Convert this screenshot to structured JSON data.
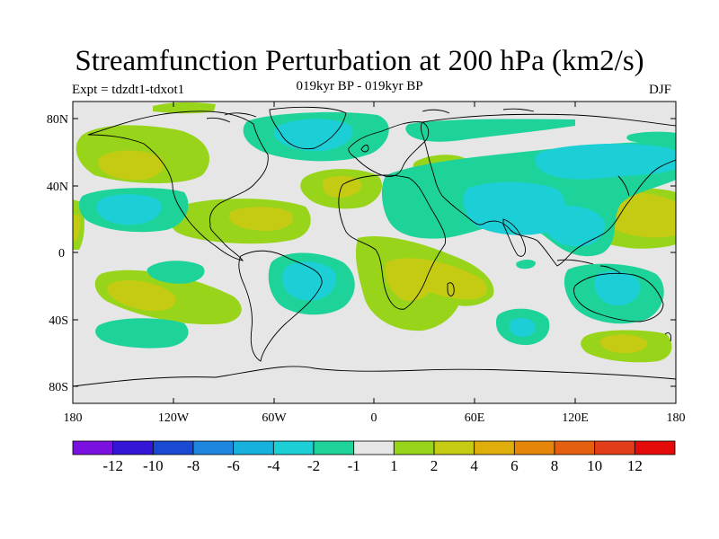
{
  "title": "Streamfunction Perturbation at 200 hPa (km2/s)",
  "subtitle": "019kyr BP - 019kyr BP",
  "left_label": "Expt = tdzdt1-tdxot1",
  "right_label": "DJF",
  "lat_labels": [
    "80N",
    "40N",
    "0",
    "40S",
    "80S"
  ],
  "lon_labels": [
    "180",
    "120W",
    "60W",
    "0",
    "60E",
    "120E",
    "180"
  ],
  "colorbar": {
    "labels": [
      "-12",
      "-10",
      "-8",
      "-6",
      "-4",
      "-2",
      "-1",
      "1",
      "2",
      "4",
      "6",
      "8",
      "10",
      "12"
    ],
    "colors": [
      "#7a11e0",
      "#3416d6",
      "#1a49d4",
      "#1f86e0",
      "#16b2dd",
      "#1ccfd6",
      "#1ed39a",
      "#e6e6e6",
      "#98d41a",
      "#c5cb12",
      "#dfae0a",
      "#e58608",
      "#e46010",
      "#e23d18",
      "#e60b0b"
    ]
  },
  "map": {
    "background_color": "#e6e6e6",
    "pos1_color": "#98d41a",
    "pos2_color": "#c5cb12",
    "neg1_color": "#1ed39a",
    "neg2_color": "#1ccfd6"
  }
}
